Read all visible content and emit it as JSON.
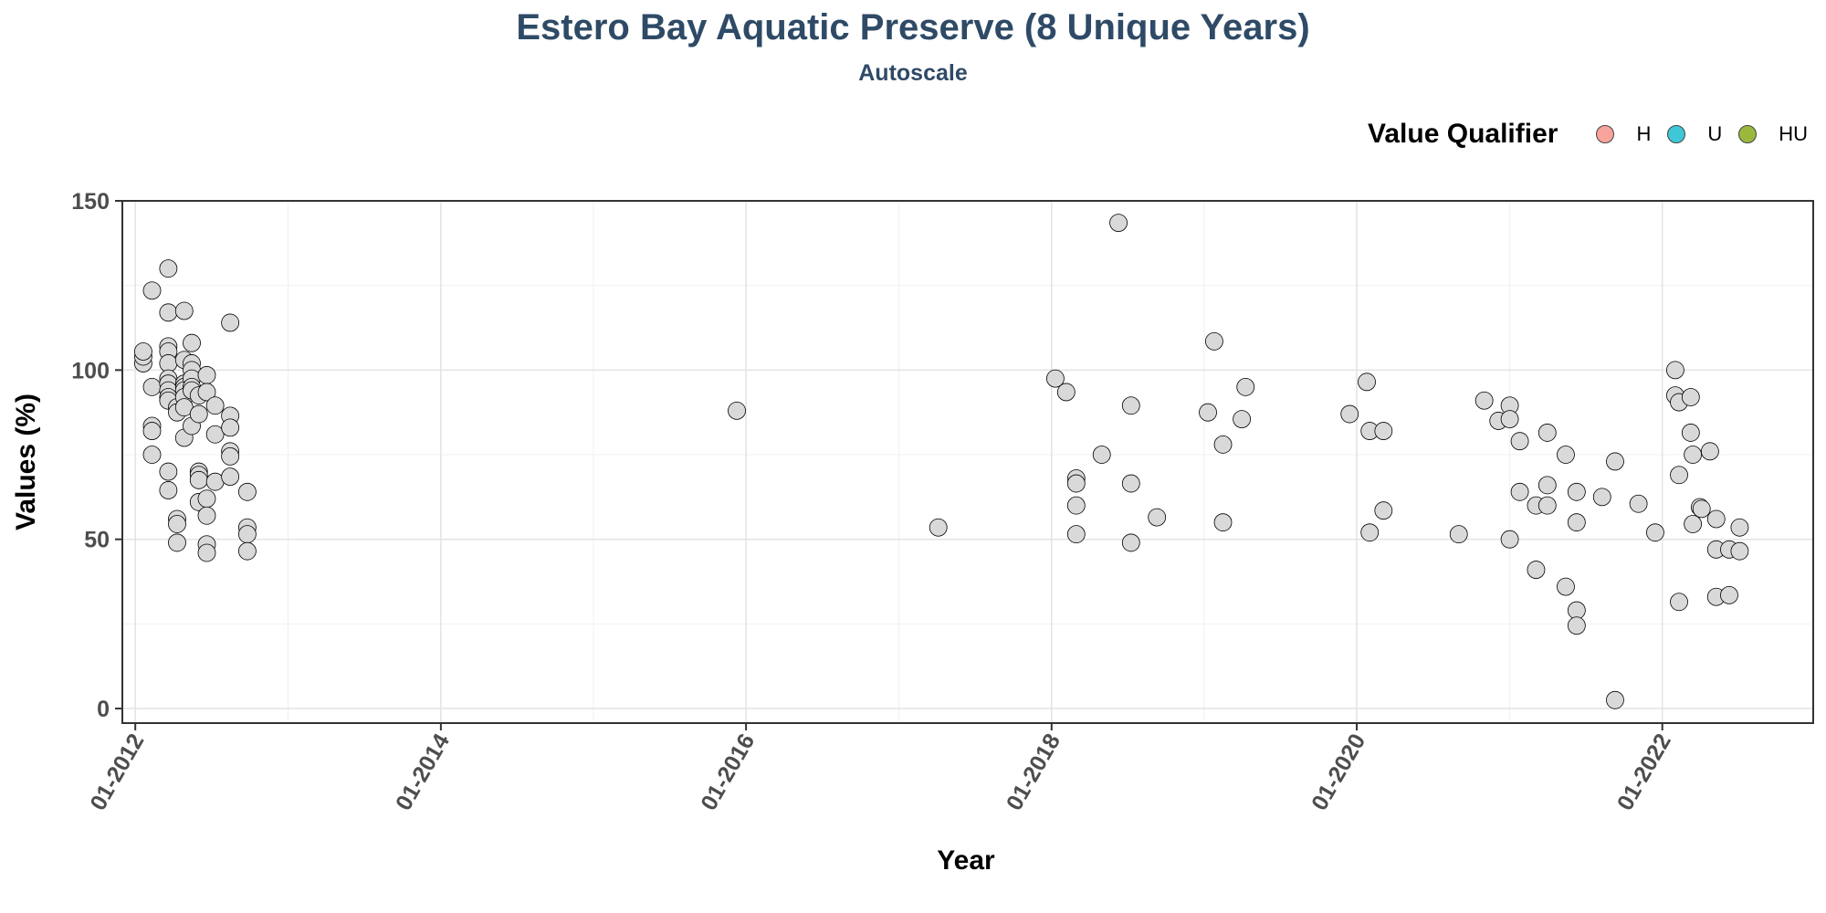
{
  "chart_data": {
    "type": "scatter",
    "title": "Estero Bay Aquatic Preserve (8 Unique Years)",
    "subtitle": "Autoscale",
    "xlabel": "Year",
    "ylabel": "Values (%)",
    "xlim": [
      "2011-12-01",
      "2022-12-28"
    ],
    "ylim": [
      -4.3,
      150
    ],
    "x_ticks": [
      "2012-01-01",
      "2014-01-01",
      "2016-01-01",
      "2018-01-01",
      "2020-01-01",
      "2022-01-01"
    ],
    "x_tick_labels": [
      "01-2012",
      "01-2014",
      "01-2016",
      "01-2018",
      "01-2020",
      "01-2022"
    ],
    "y_ticks": [
      0,
      50,
      100,
      150
    ],
    "y_tick_labels": [
      "0",
      "50",
      "100",
      "150"
    ],
    "grid": true,
    "point_color": "#d9d9d9",
    "point_border": "#000000",
    "legend": {
      "title": "Value Qualifier",
      "position": "top-right",
      "entries": [
        {
          "label": "H",
          "color": "#f8a39b"
        },
        {
          "label": "U",
          "color": "#3fc7d8"
        },
        {
          "label": "HU",
          "color": "#9ab93c"
        }
      ]
    },
    "points": [
      {
        "x": "2012-01-20",
        "y": 102
      },
      {
        "x": "2012-01-20",
        "y": 104
      },
      {
        "x": "2012-01-20",
        "y": 105.5
      },
      {
        "x": "2012-02-10",
        "y": 123.5
      },
      {
        "x": "2012-02-10",
        "y": 95
      },
      {
        "x": "2012-02-10",
        "y": 83.5
      },
      {
        "x": "2012-02-10",
        "y": 82
      },
      {
        "x": "2012-02-10",
        "y": 75
      },
      {
        "x": "2012-03-20",
        "y": 130
      },
      {
        "x": "2012-03-20",
        "y": 117
      },
      {
        "x": "2012-03-20",
        "y": 107
      },
      {
        "x": "2012-03-20",
        "y": 105.5
      },
      {
        "x": "2012-03-20",
        "y": 102
      },
      {
        "x": "2012-03-20",
        "y": 97.5
      },
      {
        "x": "2012-03-20",
        "y": 96
      },
      {
        "x": "2012-03-20",
        "y": 94
      },
      {
        "x": "2012-03-20",
        "y": 92
      },
      {
        "x": "2012-03-20",
        "y": 91
      },
      {
        "x": "2012-03-20",
        "y": 70
      },
      {
        "x": "2012-03-20",
        "y": 64.5
      },
      {
        "x": "2012-04-10",
        "y": 89
      },
      {
        "x": "2012-04-10",
        "y": 87.5
      },
      {
        "x": "2012-04-10",
        "y": 56
      },
      {
        "x": "2012-04-10",
        "y": 54.5
      },
      {
        "x": "2012-04-10",
        "y": 49
      },
      {
        "x": "2012-04-27",
        "y": 117.5
      },
      {
        "x": "2012-04-27",
        "y": 103
      },
      {
        "x": "2012-04-27",
        "y": 96
      },
      {
        "x": "2012-04-27",
        "y": 95
      },
      {
        "x": "2012-04-27",
        "y": 94
      },
      {
        "x": "2012-04-27",
        "y": 92
      },
      {
        "x": "2012-04-27",
        "y": 89
      },
      {
        "x": "2012-04-27",
        "y": 80
      },
      {
        "x": "2012-05-15",
        "y": 108
      },
      {
        "x": "2012-05-15",
        "y": 102
      },
      {
        "x": "2012-05-15",
        "y": 100
      },
      {
        "x": "2012-05-15",
        "y": 97.5
      },
      {
        "x": "2012-05-15",
        "y": 95
      },
      {
        "x": "2012-05-15",
        "y": 94
      },
      {
        "x": "2012-05-15",
        "y": 83.5
      },
      {
        "x": "2012-06-01",
        "y": 92.5
      },
      {
        "x": "2012-06-01",
        "y": 87
      },
      {
        "x": "2012-06-01",
        "y": 70
      },
      {
        "x": "2012-06-01",
        "y": 69
      },
      {
        "x": "2012-06-01",
        "y": 67.5
      },
      {
        "x": "2012-06-01",
        "y": 61
      },
      {
        "x": "2012-06-20",
        "y": 98.5
      },
      {
        "x": "2012-06-20",
        "y": 93.5
      },
      {
        "x": "2012-06-20",
        "y": 62
      },
      {
        "x": "2012-06-20",
        "y": 57
      },
      {
        "x": "2012-06-20",
        "y": 48.5
      },
      {
        "x": "2012-06-20",
        "y": 46
      },
      {
        "x": "2012-07-10",
        "y": 89.5
      },
      {
        "x": "2012-07-10",
        "y": 81
      },
      {
        "x": "2012-07-10",
        "y": 67
      },
      {
        "x": "2012-08-15",
        "y": 114
      },
      {
        "x": "2012-08-15",
        "y": 86.5
      },
      {
        "x": "2012-08-15",
        "y": 83
      },
      {
        "x": "2012-08-15",
        "y": 76
      },
      {
        "x": "2012-08-15",
        "y": 74.5
      },
      {
        "x": "2012-08-15",
        "y": 68.5
      },
      {
        "x": "2012-09-25",
        "y": 64
      },
      {
        "x": "2012-09-25",
        "y": 53.5
      },
      {
        "x": "2012-09-25",
        "y": 51.5
      },
      {
        "x": "2012-09-25",
        "y": 46.5
      },
      {
        "x": "2015-12-10",
        "y": 88
      },
      {
        "x": "2017-04-05",
        "y": 53.5
      },
      {
        "x": "2018-01-10",
        "y": 97.5
      },
      {
        "x": "2018-02-05",
        "y": 93.5
      },
      {
        "x": "2018-03-01",
        "y": 68
      },
      {
        "x": "2018-03-01",
        "y": 66.5
      },
      {
        "x": "2018-03-01",
        "y": 60
      },
      {
        "x": "2018-03-01",
        "y": 51.5
      },
      {
        "x": "2018-05-01",
        "y": 75
      },
      {
        "x": "2018-06-10",
        "y": 143.5
      },
      {
        "x": "2018-07-10",
        "y": 89.5
      },
      {
        "x": "2018-07-10",
        "y": 66.5
      },
      {
        "x": "2018-07-10",
        "y": 49
      },
      {
        "x": "2018-09-10",
        "y": 56.5
      },
      {
        "x": "2019-01-10",
        "y": 87.5
      },
      {
        "x": "2019-01-25",
        "y": 108.5
      },
      {
        "x": "2019-02-15",
        "y": 78
      },
      {
        "x": "2019-02-15",
        "y": 55
      },
      {
        "x": "2019-04-01",
        "y": 85.5
      },
      {
        "x": "2019-04-10",
        "y": 95
      },
      {
        "x": "2019-12-15",
        "y": 87
      },
      {
        "x": "2020-01-25",
        "y": 96.5
      },
      {
        "x": "2020-02-01",
        "y": 82
      },
      {
        "x": "2020-02-01",
        "y": 52
      },
      {
        "x": "2020-03-05",
        "y": 82
      },
      {
        "x": "2020-03-05",
        "y": 58.5
      },
      {
        "x": "2020-09-01",
        "y": 51.5
      },
      {
        "x": "2020-11-01",
        "y": 91
      },
      {
        "x": "2020-12-05",
        "y": 85
      },
      {
        "x": "2021-01-01",
        "y": 89.5
      },
      {
        "x": "2021-01-01",
        "y": 85.5
      },
      {
        "x": "2021-01-01",
        "y": 50
      },
      {
        "x": "2021-01-25",
        "y": 79
      },
      {
        "x": "2021-01-25",
        "y": 64
      },
      {
        "x": "2021-03-05",
        "y": 60
      },
      {
        "x": "2021-03-05",
        "y": 41
      },
      {
        "x": "2021-04-01",
        "y": 81.5
      },
      {
        "x": "2021-04-01",
        "y": 66
      },
      {
        "x": "2021-04-01",
        "y": 60
      },
      {
        "x": "2021-05-15",
        "y": 75
      },
      {
        "x": "2021-05-15",
        "y": 36
      },
      {
        "x": "2021-06-10",
        "y": 64
      },
      {
        "x": "2021-06-10",
        "y": 55
      },
      {
        "x": "2021-06-10",
        "y": 29
      },
      {
        "x": "2021-06-10",
        "y": 24.5
      },
      {
        "x": "2021-08-10",
        "y": 62.5
      },
      {
        "x": "2021-09-10",
        "y": 73
      },
      {
        "x": "2021-09-10",
        "y": 2.5
      },
      {
        "x": "2021-11-05",
        "y": 60.5
      },
      {
        "x": "2021-12-15",
        "y": 52
      },
      {
        "x": "2022-02-01",
        "y": 100
      },
      {
        "x": "2022-02-01",
        "y": 92.5
      },
      {
        "x": "2022-02-10",
        "y": 90.5
      },
      {
        "x": "2022-02-10",
        "y": 69
      },
      {
        "x": "2022-02-10",
        "y": 31.5
      },
      {
        "x": "2022-03-10",
        "y": 92
      },
      {
        "x": "2022-03-10",
        "y": 81.5
      },
      {
        "x": "2022-03-15",
        "y": 75
      },
      {
        "x": "2022-03-15",
        "y": 54.5
      },
      {
        "x": "2022-04-01",
        "y": 59.5
      },
      {
        "x": "2022-04-05",
        "y": 59
      },
      {
        "x": "2022-04-25",
        "y": 76
      },
      {
        "x": "2022-05-10",
        "y": 56
      },
      {
        "x": "2022-05-10",
        "y": 47
      },
      {
        "x": "2022-05-10",
        "y": 33
      },
      {
        "x": "2022-06-10",
        "y": 47
      },
      {
        "x": "2022-06-10",
        "y": 33.5
      },
      {
        "x": "2022-07-05",
        "y": 53.5
      },
      {
        "x": "2022-07-05",
        "y": 46.5
      }
    ]
  }
}
